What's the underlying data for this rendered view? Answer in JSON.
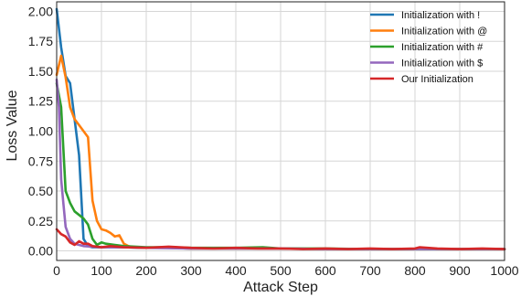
{
  "chart_data": {
    "type": "line",
    "title": "",
    "xlabel": "Attack Step",
    "ylabel": "Loss Value",
    "xlim": [
      0,
      1000
    ],
    "ylim": [
      -0.08,
      2.08
    ],
    "xticks": [
      0,
      100,
      200,
      300,
      400,
      500,
      600,
      700,
      800,
      900,
      1000
    ],
    "yticks": [
      0.0,
      0.25,
      0.5,
      0.75,
      1.0,
      1.25,
      1.5,
      1.75,
      2.0
    ],
    "xtick_labels": [
      "0",
      "100",
      "200",
      "300",
      "400",
      "500",
      "600",
      "700",
      "800",
      "900",
      "1000"
    ],
    "ytick_labels": [
      "0.00",
      "0.25",
      "0.50",
      "0.75",
      "1.00",
      "1.25",
      "1.50",
      "1.75",
      "2.00"
    ],
    "grid": true,
    "legend_position": "top-right",
    "series": [
      {
        "name": "Initialization with !",
        "color": "#1f77b4",
        "x": [
          0,
          10,
          20,
          30,
          40,
          50,
          60,
          70,
          80,
          100,
          150,
          200,
          250,
          300,
          400,
          500,
          600,
          700,
          800,
          900,
          1000
        ],
        "y": [
          2.02,
          1.7,
          1.46,
          1.4,
          1.1,
          0.8,
          0.1,
          0.04,
          0.03,
          0.03,
          0.03,
          0.025,
          0.025,
          0.02,
          0.02,
          0.02,
          0.015,
          0.015,
          0.015,
          0.015,
          0.015
        ]
      },
      {
        "name": "Initialization with @",
        "color": "#ff7f0e",
        "x": [
          0,
          10,
          20,
          30,
          40,
          50,
          60,
          70,
          80,
          90,
          100,
          110,
          120,
          130,
          140,
          150,
          160,
          170,
          200,
          250,
          300,
          400,
          500,
          600,
          700,
          800,
          900,
          1000
        ],
        "y": [
          1.47,
          1.63,
          1.45,
          1.2,
          1.1,
          1.05,
          1.0,
          0.95,
          0.42,
          0.25,
          0.18,
          0.17,
          0.15,
          0.12,
          0.13,
          0.06,
          0.04,
          0.03,
          0.025,
          0.025,
          0.02,
          0.02,
          0.02,
          0.015,
          0.015,
          0.015,
          0.015,
          0.015
        ]
      },
      {
        "name": "Initialization with #",
        "color": "#2ca02c",
        "x": [
          0,
          10,
          20,
          30,
          40,
          50,
          60,
          70,
          80,
          90,
          100,
          110,
          130,
          150,
          200,
          250,
          300,
          400,
          460,
          500,
          600,
          700,
          800,
          900,
          1000
        ],
        "y": [
          1.4,
          1.2,
          0.5,
          0.4,
          0.33,
          0.3,
          0.27,
          0.22,
          0.1,
          0.05,
          0.07,
          0.06,
          0.05,
          0.04,
          0.03,
          0.03,
          0.025,
          0.025,
          0.03,
          0.02,
          0.02,
          0.015,
          0.015,
          0.015,
          0.015
        ]
      },
      {
        "name": "Initialization with $",
        "color": "#9467bd",
        "x": [
          0,
          5,
          10,
          15,
          20,
          30,
          40,
          50,
          60,
          100,
          150,
          200,
          300,
          400,
          500,
          600,
          700,
          800,
          900,
          1000
        ],
        "y": [
          1.43,
          1.2,
          0.6,
          0.4,
          0.2,
          0.1,
          0.06,
          0.05,
          0.04,
          0.03,
          0.03,
          0.025,
          0.02,
          0.02,
          0.02,
          0.015,
          0.015,
          0.015,
          0.015,
          0.015
        ]
      },
      {
        "name": "Our Initialization",
        "color": "#d62728",
        "x": [
          0,
          10,
          20,
          30,
          40,
          50,
          60,
          70,
          80,
          100,
          120,
          150,
          200,
          250,
          300,
          350,
          400,
          450,
          500,
          550,
          600,
          650,
          700,
          750,
          800,
          810,
          850,
          900,
          950,
          1000
        ],
        "y": [
          0.18,
          0.14,
          0.12,
          0.07,
          0.05,
          0.08,
          0.06,
          0.06,
          0.04,
          0.03,
          0.04,
          0.03,
          0.025,
          0.035,
          0.025,
          0.02,
          0.025,
          0.02,
          0.02,
          0.015,
          0.02,
          0.015,
          0.02,
          0.015,
          0.02,
          0.03,
          0.02,
          0.015,
          0.02,
          0.015
        ]
      }
    ]
  }
}
